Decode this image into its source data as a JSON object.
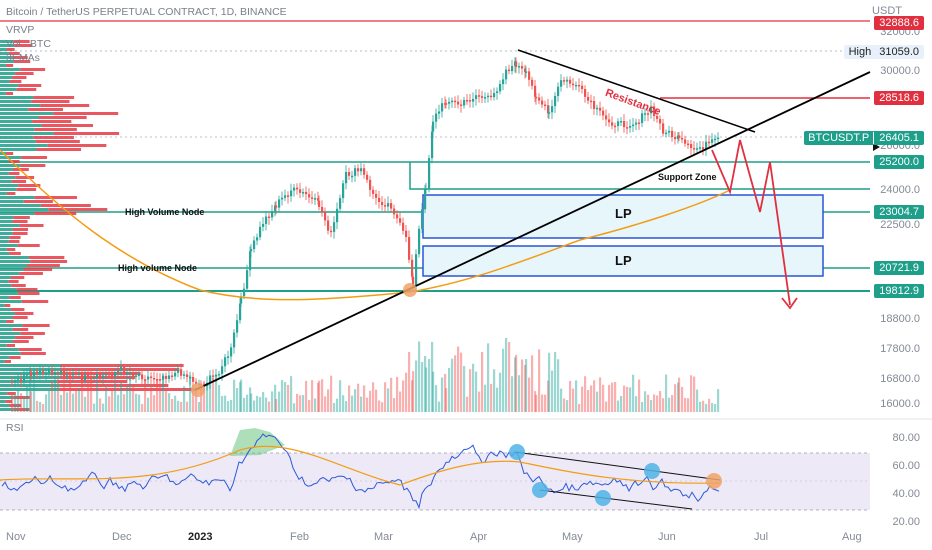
{
  "header": {
    "title": "Bitcoin / TetherUS PERPETUAL CONTRACT, 1D, BINANCE",
    "indicators": [
      "VRVP",
      "Vol · BTC",
      "3EMAs"
    ]
  },
  "axis": {
    "currency": "USDT",
    "y_ticks": [
      "32000.0",
      "30000.0",
      "26000.0",
      "24000.0",
      "22500.0",
      "18800.0",
      "17800.0",
      "16800.0",
      "16000.0"
    ],
    "x_ticks": [
      "Nov",
      "Dec",
      "2023",
      "Feb",
      "Mar",
      "Apr",
      "May",
      "Jun",
      "Jul",
      "Aug"
    ],
    "rsi_ticks": [
      "80.00",
      "60.00",
      "40.00",
      "20.00"
    ]
  },
  "price_tags": [
    {
      "label": "32888.6",
      "color": "#e0303f"
    },
    {
      "label": "31059.0",
      "color": "#e8f1fb",
      "prefix": "High"
    },
    {
      "label": "28518.6",
      "color": "#e0303f"
    },
    {
      "label": "26405.1",
      "color": "#1e9f8a",
      "prefix": "BTCUSDT.P"
    },
    {
      "label": "25200.0",
      "color": "#1e9f8a"
    },
    {
      "label": "23004.7",
      "color": "#1e9f8a"
    },
    {
      "label": "20721.9",
      "color": "#1e9f8a"
    },
    {
      "label": "19812.9",
      "color": "#1e9f8a"
    }
  ],
  "annotations": {
    "resistance": "Resistance",
    "support_zone": "Support Zone",
    "hvn_1": "High Volume Node",
    "hvn_2": "High volume Node",
    "lp_1": "LP",
    "lp_2": "LP",
    "rsi_label": "RSI"
  },
  "colors": {
    "up": "#26a69a",
    "down": "#ef5350",
    "ema": "#f39c12",
    "trend": "#000000",
    "red_line": "#e0303f",
    "teal_line": "#1e9f8a",
    "lp_box": "#2a55d6",
    "rsi_line": "#2d59d8"
  }
}
